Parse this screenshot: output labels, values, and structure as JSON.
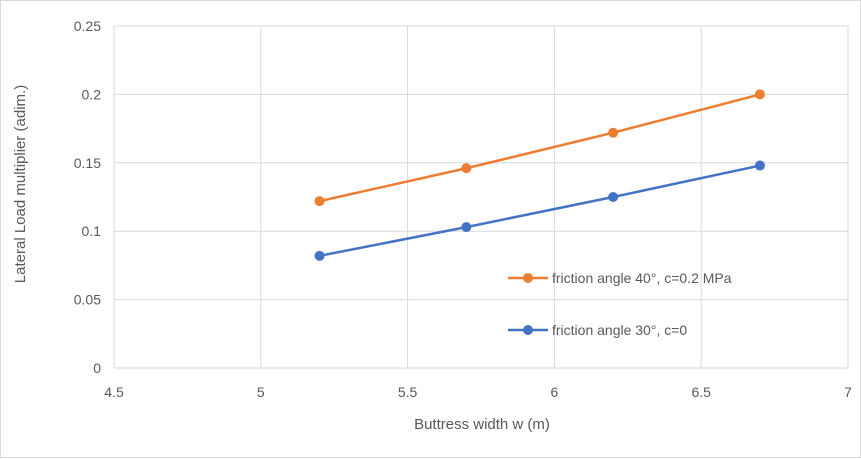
{
  "chart_data": {
    "type": "line",
    "title": "",
    "xlabel": "Buttress width w (m)",
    "ylabel": "Lateral Load multiplier (adim.)",
    "xlim": [
      4.5,
      7
    ],
    "ylim": [
      0,
      0.25
    ],
    "x_ticks": [
      "4.5",
      "5",
      "5.5",
      "6",
      "6.5",
      "7"
    ],
    "y_ticks": [
      "0",
      "0.05",
      "0.1",
      "0.15",
      "0.2",
      "0.25"
    ],
    "grid": true,
    "legend_position": "inside-right",
    "series": [
      {
        "name": "friction angle 40°, c=0.2 MPa",
        "color": "#ED7D31",
        "x": [
          5.2,
          5.7,
          6.2,
          6.7
        ],
        "y": [
          0.122,
          0.146,
          0.172,
          0.2
        ]
      },
      {
        "name": "friction angle 30°, c=0",
        "color": "#4472C4",
        "x": [
          5.2,
          5.7,
          6.2,
          6.7
        ],
        "y": [
          0.082,
          0.103,
          0.125,
          0.148
        ]
      }
    ]
  }
}
